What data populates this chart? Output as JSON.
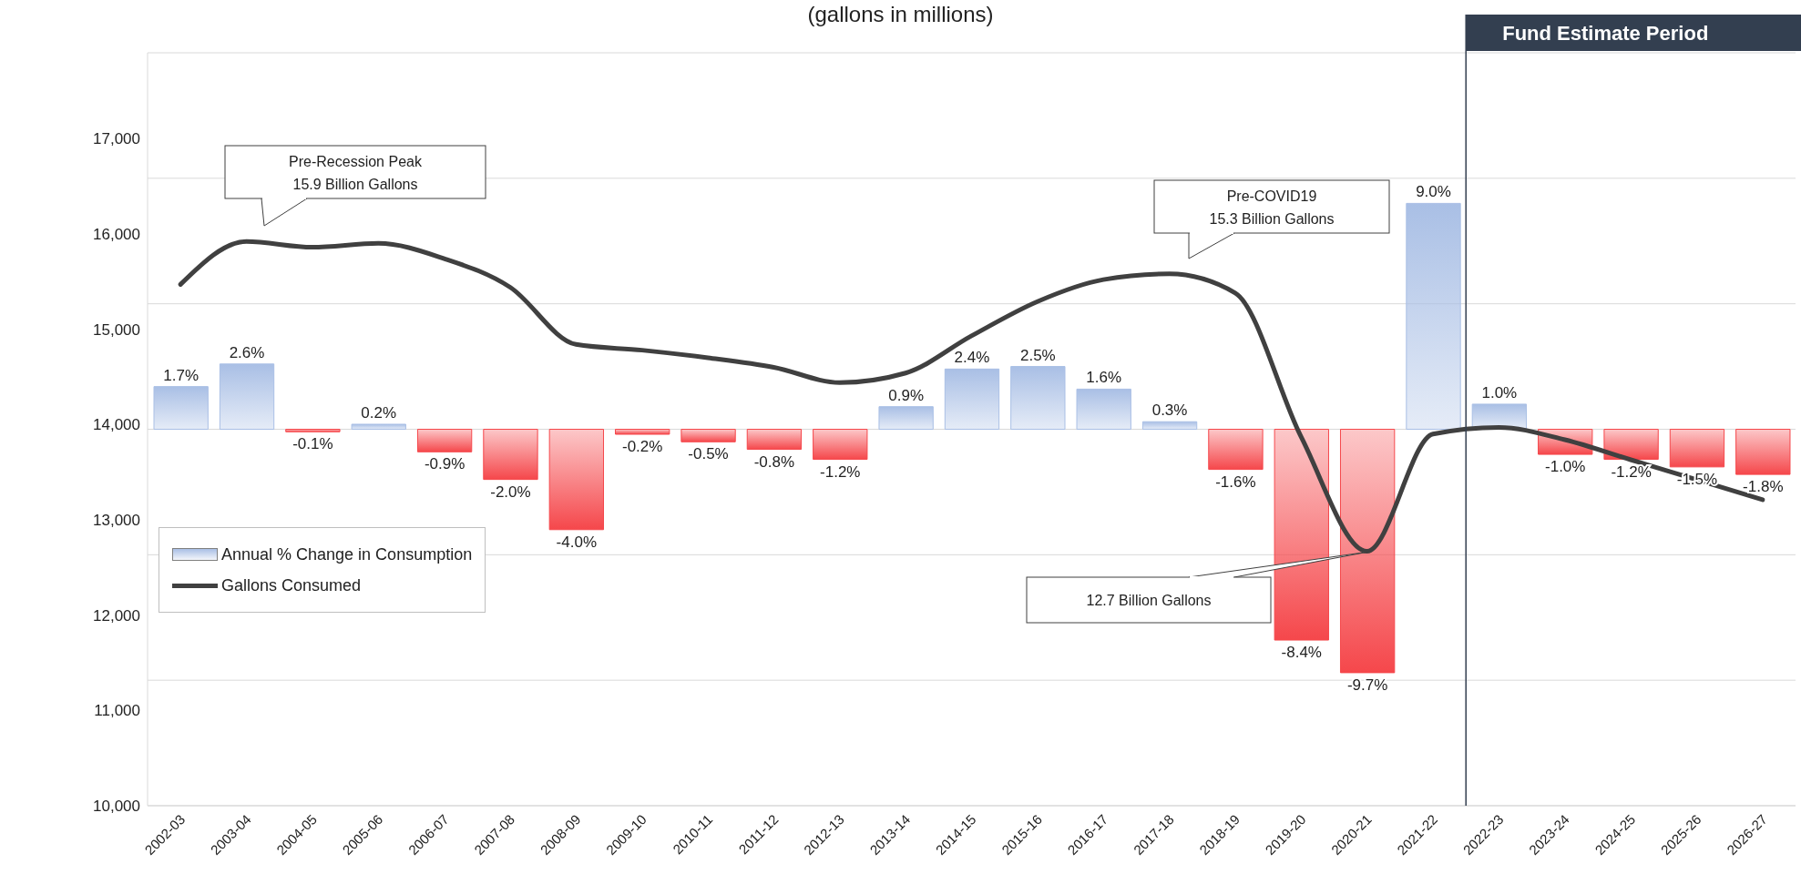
{
  "chart_data": {
    "type": "bar",
    "title": "(gallons in millions)",
    "categories": [
      "2002-03",
      "2003-04",
      "2004-05",
      "2005-06",
      "2006-07",
      "2007-08",
      "2008-09",
      "2009-10",
      "2010-11",
      "2011-12",
      "2012-13",
      "2013-14",
      "2014-15",
      "2015-16",
      "2016-17",
      "2017-18",
      "2018-19",
      "2019-20",
      "2020-21",
      "2021-22",
      "2022-23",
      "2023-24",
      "2024-25",
      "2025-26",
      "2026-27"
    ],
    "series": [
      {
        "name": "Annual % Change in Consumption",
        "axis": "y2",
        "values": [
          1.7,
          2.6,
          -0.1,
          0.2,
          -0.9,
          -2.0,
          -4.0,
          -0.2,
          -0.5,
          -0.8,
          -1.2,
          0.9,
          2.4,
          2.5,
          1.6,
          0.3,
          -1.6,
          -8.4,
          -9.7,
          9.0,
          1.0,
          -1.0,
          -1.2,
          -1.5,
          -1.8
        ],
        "colors": [
          "#a9bfe5",
          "#a9bfe5",
          "#f5474b",
          "#a9bfe5",
          "#f5474b",
          "#f5474b",
          "#f5474b",
          "#f5474b",
          "#f5474b",
          "#f5474b",
          "#f5474b",
          "#a9bfe5",
          "#a9bfe5",
          "#a9bfe5",
          "#a9bfe5",
          "#a9bfe5",
          "#f5474b",
          "#f5474b",
          "#f5474b",
          "#a9bfe5",
          "#a9bfe5",
          "#f5474b",
          "#f5474b",
          "#f5474b",
          "#f5474b"
        ],
        "value_labels": [
          "1.7%",
          "2.6%",
          "-0.1%",
          "0.2%",
          "-0.9%",
          "-2.0%",
          "-4.0%",
          "-0.2%",
          "-0.5%",
          "-0.8%",
          "-1.2%",
          "0.9%",
          "2.4%",
          "2.5%",
          "1.6%",
          "0.3%",
          "-1.6%",
          "-8.4%",
          "-9.7%",
          "9.0%",
          "1.0%",
          "-1.0%",
          "-1.2%",
          "-1.5%",
          "-1.8%"
        ]
      },
      {
        "name": "Gallons Consumed",
        "type": "line",
        "axis": "y",
        "color": "#404040",
        "values": [
          15470,
          15920,
          15860,
          15900,
          15740,
          15440,
          14840,
          14780,
          14700,
          14600,
          14440,
          14540,
          14930,
          15290,
          15520,
          15580,
          15380,
          13870,
          12670,
          13900,
          13970,
          13840,
          13630,
          13420,
          13210
        ]
      }
    ],
    "ylim": [
      10000,
      17900
    ],
    "yticks": [
      {
        "value": 10000,
        "label": "10,000"
      },
      {
        "value": 11000,
        "label": "11,000"
      },
      {
        "value": 12000,
        "label": "12,000"
      },
      {
        "value": 13000,
        "label": "13,000"
      },
      {
        "value": 14000,
        "label": "14,000"
      },
      {
        "value": 15000,
        "label": "15,000"
      },
      {
        "value": 16000,
        "label": "16,000"
      },
      {
        "value": 17000,
        "label": "17,000"
      }
    ],
    "y2lim": [
      -15,
      15
    ],
    "y2ticks": [
      {
        "value": -15,
        "label": null
      },
      {
        "value": -10,
        "label": null
      },
      {
        "value": -5,
        "label": null
      },
      {
        "value": 0,
        "label": null
      },
      {
        "value": 5,
        "label": null
      },
      {
        "value": 10,
        "label": null
      },
      {
        "value": 15,
        "label": null
      }
    ],
    "grid": "y2",
    "legend": "bottom left",
    "marker": "none",
    "line_style": "solid",
    "ref_lines": [
      {
        "axis": "x",
        "value": "2022-23",
        "label": "Fund Estimate Period",
        "color": "#333f50"
      }
    ],
    "annotations": [
      "Pre-Recession Peak\n15.9 Billion Gallons",
      "Pre-COVID19\n15.3 Billion Gallons",
      {
        "text": "12.7 Billion Gallons",
        "x": "2020-21",
        "y": 12700
      }
    ]
  }
}
